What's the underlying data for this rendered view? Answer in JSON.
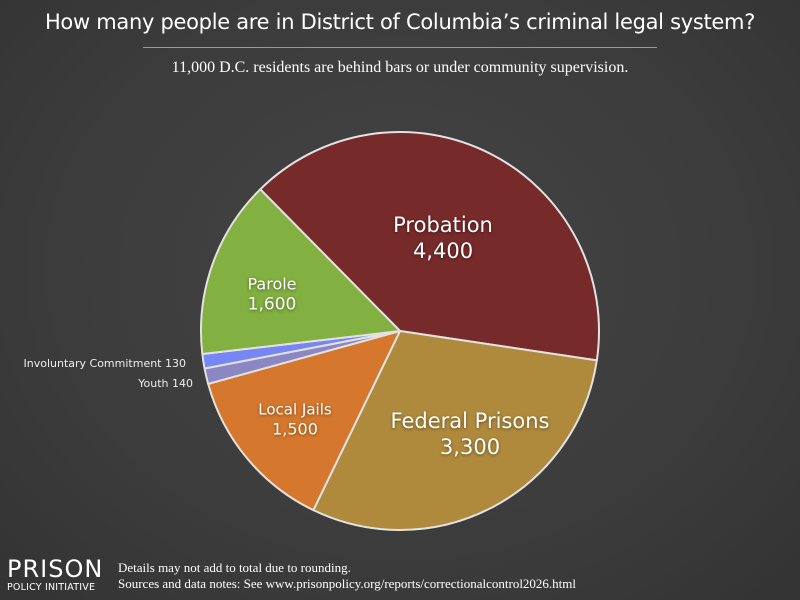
{
  "header": {
    "title": "How many people are in District of Columbia’s criminal legal system?",
    "subtitle": "11,000 D.C. residents are behind bars or under community supervision."
  },
  "footer": {
    "logo_line1": "PRISON",
    "logo_line2": "POLICY INITIATIVE",
    "note1": "Details may not add to total due to rounding.",
    "note2": "Sources and data notes: See www.prisonpolicy.org/reports/correctionalcontrol2026.html"
  },
  "labels": {
    "probation": {
      "name": "Probation",
      "value": "4,400"
    },
    "federal": {
      "name": "Federal Prisons",
      "value": "3,300"
    },
    "jails": {
      "name": "Local Jails",
      "value": "1,500"
    },
    "parole": {
      "name": "Parole",
      "value": "1,600"
    },
    "invol": "Involuntary Commitment 130",
    "youth": "Youth 140"
  },
  "chart_data": {
    "type": "pie",
    "title": "How many people are in District of Columbia’s criminal legal system?",
    "subtitle": "11,000 D.C. residents are behind bars or under community supervision.",
    "total_label": "11,000",
    "slices": [
      {
        "label": "Probation",
        "value": 4400,
        "color": "#772a2a"
      },
      {
        "label": "Federal Prisons",
        "value": 3300,
        "color": "#b08a3c"
      },
      {
        "label": "Local Jails",
        "value": 1500,
        "color": "#d5782e"
      },
      {
        "label": "Youth",
        "value": 140,
        "color": "#8a87c2"
      },
      {
        "label": "Involuntary Commitment",
        "value": 130,
        "color": "#7686f5"
      },
      {
        "label": "Parole",
        "value": 1600,
        "color": "#82b041"
      }
    ],
    "start_angle_deg": -44.6,
    "direction": "clockwise",
    "center": [
      400,
      331
    ],
    "radius": 199,
    "stroke_color": "#e2e2e2",
    "legend": "none (inline labels)"
  }
}
